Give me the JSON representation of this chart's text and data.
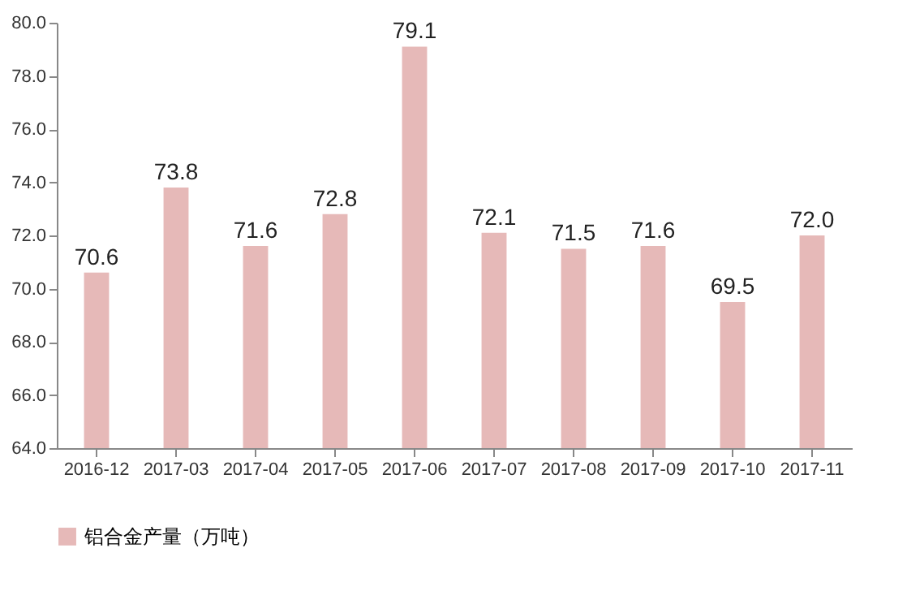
{
  "chart_data": {
    "type": "bar",
    "categories": [
      "2016-12",
      "2017-03",
      "2017-04",
      "2017-05",
      "2017-06",
      "2017-07",
      "2017-08",
      "2017-09",
      "2017-10",
      "2017-11"
    ],
    "series": [
      {
        "name": "铝合金产量（万吨）",
        "color": "#e6b9b8",
        "values": [
          70.6,
          73.8,
          71.6,
          72.8,
          79.1,
          72.1,
          71.5,
          71.6,
          69.5,
          72.0
        ],
        "value_labels": [
          "70.6",
          "73.8",
          "71.6",
          "72.8",
          "79.1",
          "72.1",
          "71.5",
          "71.6",
          "69.5",
          "72.0"
        ]
      }
    ],
    "ylim": [
      64,
      80
    ],
    "yticks": [
      {
        "value": 64,
        "label": "64.0"
      },
      {
        "value": 66,
        "label": "66.0"
      },
      {
        "value": 68,
        "label": "68.0"
      },
      {
        "value": 70,
        "label": "70.0"
      },
      {
        "value": 72,
        "label": "72.0"
      },
      {
        "value": 74,
        "label": "74.0"
      },
      {
        "value": 76,
        "label": "76.0"
      },
      {
        "value": 78,
        "label": "78.0"
      },
      {
        "value": 80,
        "label": "80.0"
      }
    ],
    "legend": "bottom left"
  }
}
